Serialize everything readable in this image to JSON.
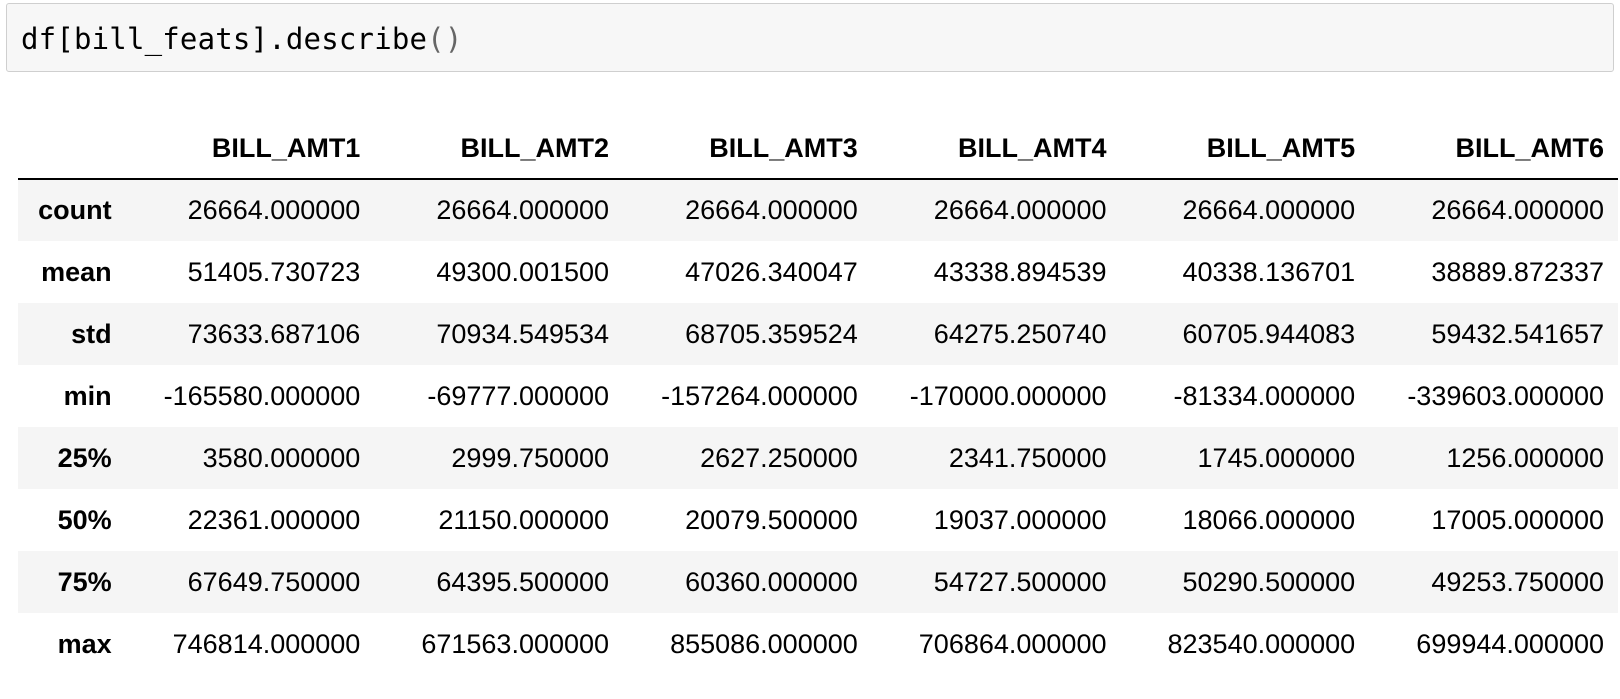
{
  "code_cell": {
    "prefix": "df[bill_feats].describe",
    "parens": "()"
  },
  "table": {
    "index_header": "",
    "columns": [
      "BILL_AMT1",
      "BILL_AMT2",
      "BILL_AMT3",
      "BILL_AMT4",
      "BILL_AMT5",
      "BILL_AMT6"
    ],
    "rows": [
      {
        "label": "count",
        "values": [
          "26664.000000",
          "26664.000000",
          "26664.000000",
          "26664.000000",
          "26664.000000",
          "26664.000000"
        ]
      },
      {
        "label": "mean",
        "values": [
          "51405.730723",
          "49300.001500",
          "47026.340047",
          "43338.894539",
          "40338.136701",
          "38889.872337"
        ]
      },
      {
        "label": "std",
        "values": [
          "73633.687106",
          "70934.549534",
          "68705.359524",
          "64275.250740",
          "60705.944083",
          "59432.541657"
        ]
      },
      {
        "label": "min",
        "values": [
          "-165580.000000",
          "-69777.000000",
          "-157264.000000",
          "-170000.000000",
          "-81334.000000",
          "-339603.000000"
        ]
      },
      {
        "label": "25%",
        "values": [
          "3580.000000",
          "2999.750000",
          "2627.250000",
          "2341.750000",
          "1745.000000",
          "1256.000000"
        ]
      },
      {
        "label": "50%",
        "values": [
          "22361.000000",
          "21150.000000",
          "20079.500000",
          "19037.000000",
          "18066.000000",
          "17005.000000"
        ]
      },
      {
        "label": "75%",
        "values": [
          "67649.750000",
          "64395.500000",
          "60360.000000",
          "54727.500000",
          "50290.500000",
          "49253.750000"
        ]
      },
      {
        "label": "max",
        "values": [
          "746814.000000",
          "671563.000000",
          "855086.000000",
          "706864.000000",
          "823540.000000",
          "699944.000000"
        ]
      }
    ]
  }
}
